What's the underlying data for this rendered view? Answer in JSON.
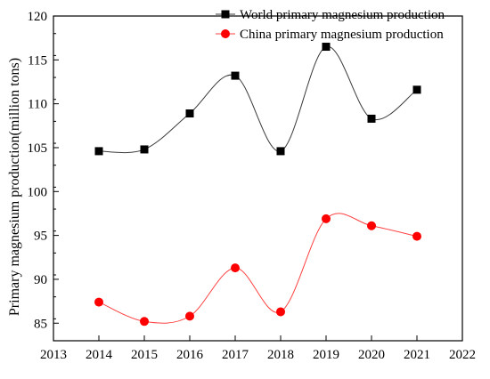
{
  "chart_data": {
    "type": "line",
    "title": "",
    "xlabel": "",
    "ylabel": "Primary magnesium production(million tons)",
    "xlim": [
      2013,
      2022
    ],
    "ylim": [
      83,
      120
    ],
    "xticks": [
      2013,
      2014,
      2015,
      2016,
      2017,
      2018,
      2019,
      2020,
      2021,
      2022
    ],
    "yticks": [
      85,
      90,
      95,
      100,
      105,
      110,
      115,
      120
    ],
    "grid": false,
    "legend_position": "top-right",
    "x": [
      2014,
      2015,
      2016,
      2017,
      2018,
      2019,
      2020,
      2021
    ],
    "series": [
      {
        "name": "World primary magnesium production",
        "values": [
          104.6,
          104.8,
          108.9,
          113.2,
          104.6,
          116.5,
          108.3,
          111.6
        ],
        "marker": "square",
        "marker_color": "#000000",
        "line_color": "#3a3a3a"
      },
      {
        "name": "China primary magnesium production",
        "values": [
          87.4,
          85.2,
          85.8,
          91.3,
          86.3,
          96.9,
          96.1,
          94.9
        ],
        "marker": "circle",
        "marker_color": "#ff0000",
        "line_color": "#ff4040"
      }
    ]
  }
}
